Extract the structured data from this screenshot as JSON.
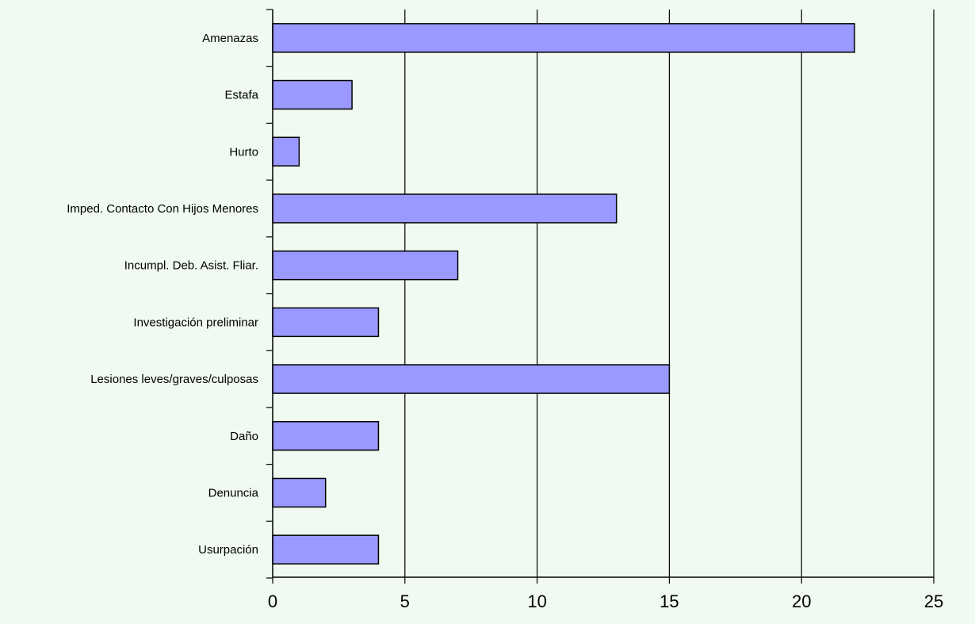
{
  "colors": {
    "background": "#f0faf0",
    "bar_fill": "#9999ff",
    "bar_stroke": "#000000",
    "grid": "#000000"
  },
  "chart_data": {
    "type": "bar",
    "orientation": "horizontal",
    "title": "",
    "xlabel": "",
    "ylabel": "",
    "categories": [
      "Amenazas",
      "Estafa",
      "Hurto",
      "Imped. Contacto Con Hijos Menores",
      "Incumpl. Deb. Asist. Fliar.",
      "Investigación preliminar",
      "Lesiones leves/graves/culposas",
      "Daño",
      "Denuncia",
      "Usurpación"
    ],
    "values": [
      22,
      3,
      1,
      13,
      7,
      4,
      15,
      4,
      2,
      4
    ],
    "xlim": [
      0,
      25
    ],
    "x_ticks": [
      0,
      5,
      10,
      15,
      20,
      25
    ],
    "grid": true,
    "legend": "none"
  }
}
